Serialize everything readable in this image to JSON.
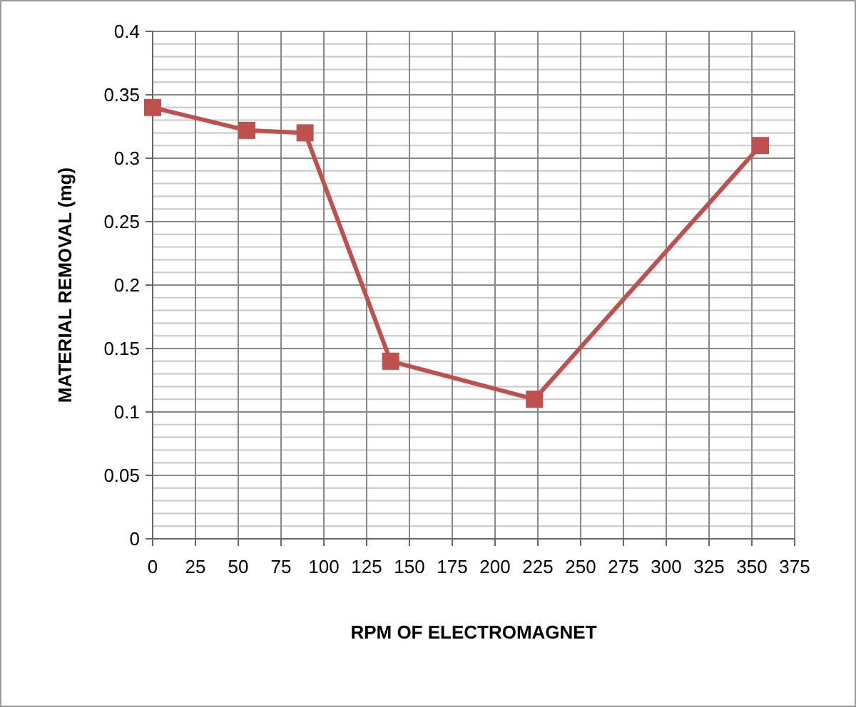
{
  "chart_data": {
    "type": "line",
    "xlabel": "RPM OF ELECTROMAGNET",
    "ylabel": "MATERIAL REMOVAL (mg)",
    "x": [
      0,
      55,
      89,
      139,
      223,
      355
    ],
    "series": [
      {
        "color": "#c0504d",
        "values": [
          0.34,
          0.322,
          0.32,
          0.14,
          0.11,
          0.31
        ]
      }
    ],
    "xlim": [
      0,
      375
    ],
    "xticks": [
      0,
      25,
      50,
      75,
      100,
      125,
      150,
      175,
      200,
      225,
      250,
      275,
      300,
      325,
      350,
      375
    ],
    "ylim": [
      0,
      0.4
    ],
    "yticks": [
      0,
      {
        "value": 0.01,
        "label": null
      },
      {
        "value": 0.02,
        "label": null
      },
      {
        "value": 0.03,
        "label": null
      },
      {
        "value": 0.04,
        "label": null
      },
      0.05,
      {
        "value": 0.06,
        "label": null
      },
      {
        "value": 0.07,
        "label": null
      },
      {
        "value": 0.08,
        "label": null
      },
      {
        "value": 0.09,
        "label": null
      },
      0.1,
      {
        "value": 0.11,
        "label": null
      },
      {
        "value": 0.12,
        "label": null
      },
      {
        "value": 0.13,
        "label": null
      },
      {
        "value": 0.14,
        "label": null
      },
      0.15,
      {
        "value": 0.16,
        "label": null
      },
      {
        "value": 0.17,
        "label": null
      },
      {
        "value": 0.18,
        "label": null
      },
      {
        "value": 0.19,
        "label": null
      },
      0.2,
      {
        "value": 0.21,
        "label": null
      },
      {
        "value": 0.22,
        "label": null
      },
      {
        "value": 0.23,
        "label": null
      },
      {
        "value": 0.24,
        "label": null
      },
      0.25,
      {
        "value": 0.26,
        "label": null
      },
      {
        "value": 0.27,
        "label": null
      },
      {
        "value": 0.28,
        "label": null
      },
      {
        "value": 0.29,
        "label": null
      },
      0.3,
      {
        "value": 0.31,
        "label": null
      },
      {
        "value": 0.32,
        "label": null
      },
      {
        "value": 0.33,
        "label": null
      },
      {
        "value": 0.34,
        "label": null
      },
      0.35,
      {
        "value": 0.36,
        "label": null
      },
      {
        "value": 0.37,
        "label": null
      },
      {
        "value": 0.38,
        "label": null
      },
      {
        "value": 0.39,
        "label": null
      },
      0.4
    ],
    "grid": true,
    "marker": "square",
    "line_style": "solid"
  }
}
